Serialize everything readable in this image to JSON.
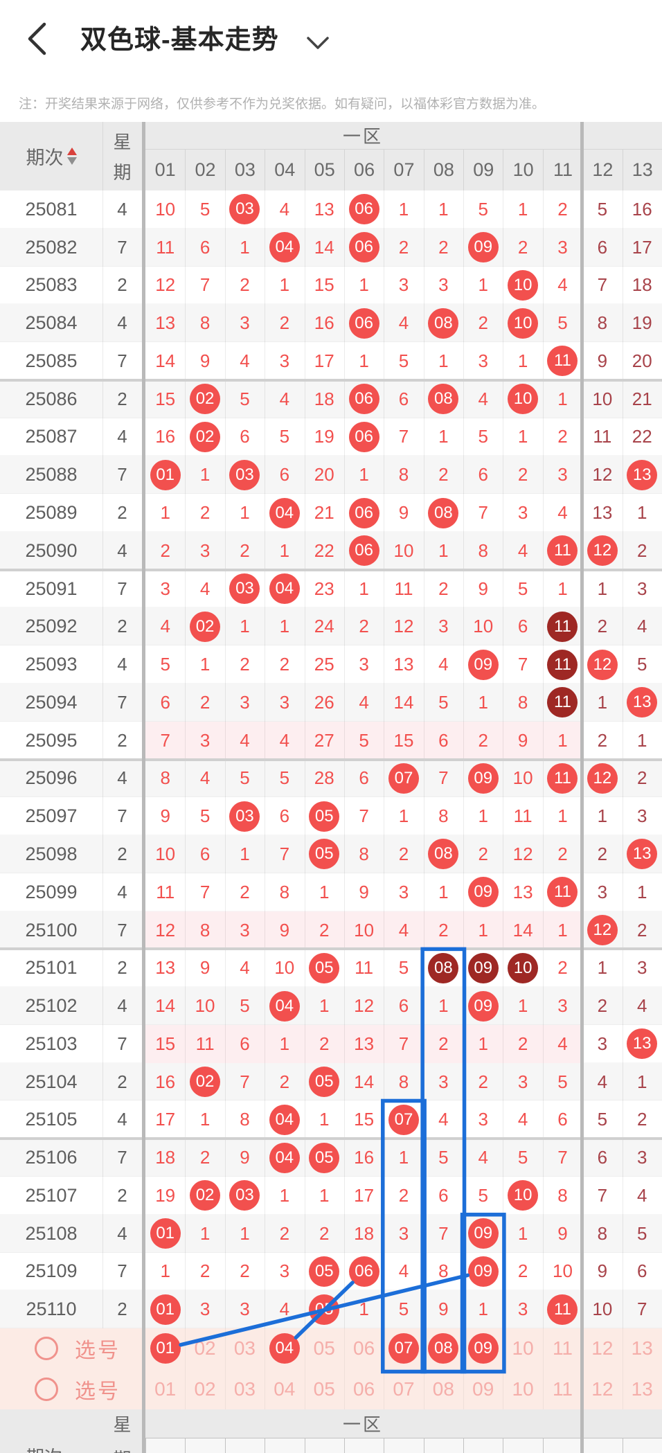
{
  "header": {
    "title": "双色球-基本走势",
    "back_icon": "chevron-left",
    "dropdown_icon": "chevron-down"
  },
  "note": "注：开奖结果来源于网络，仅供参考不作为兑奖依据。如有疑问，以福体彩官方数据为准。",
  "table": {
    "period_label": "期次",
    "week_label_chars": [
      "星",
      "期"
    ],
    "zone1_label": "一区",
    "col_headers": [
      "01",
      "02",
      "03",
      "04",
      "05",
      "06",
      "07",
      "08",
      "09",
      "10",
      "11",
      "12",
      "13"
    ],
    "zone1_col_count": 11,
    "cell_legend": {
      "*": "red-ball-drawn",
      "#": "dark-ball-drawn",
      "plain": "miss-count"
    },
    "rows": [
      {
        "period": "25081",
        "week": "4",
        "pink": false,
        "cells": [
          "10",
          "5",
          "*03",
          "4",
          "13",
          "*06",
          "1",
          "1",
          "5",
          "1",
          "2",
          "5",
          "16"
        ]
      },
      {
        "period": "25082",
        "week": "7",
        "pink": false,
        "cells": [
          "11",
          "6",
          "1",
          "*04",
          "14",
          "*06",
          "2",
          "2",
          "*09",
          "2",
          "3",
          "6",
          "17"
        ]
      },
      {
        "period": "25083",
        "week": "2",
        "pink": false,
        "cells": [
          "12",
          "7",
          "2",
          "1",
          "15",
          "1",
          "3",
          "3",
          "1",
          "*10",
          "4",
          "7",
          "18"
        ]
      },
      {
        "period": "25084",
        "week": "4",
        "pink": false,
        "cells": [
          "13",
          "8",
          "3",
          "2",
          "16",
          "*06",
          "4",
          "*08",
          "2",
          "*10",
          "5",
          "8",
          "19"
        ]
      },
      {
        "period": "25085",
        "week": "7",
        "pink": false,
        "cells": [
          "14",
          "9",
          "4",
          "3",
          "17",
          "1",
          "5",
          "1",
          "3",
          "1",
          "*11",
          "9",
          "20"
        ]
      },
      {
        "period": "25086",
        "week": "2",
        "pink": false,
        "cells": [
          "15",
          "*02",
          "5",
          "4",
          "18",
          "*06",
          "6",
          "*08",
          "4",
          "*10",
          "1",
          "10",
          "21"
        ]
      },
      {
        "period": "25087",
        "week": "4",
        "pink": false,
        "cells": [
          "16",
          "*02",
          "6",
          "5",
          "19",
          "*06",
          "7",
          "1",
          "5",
          "1",
          "2",
          "11",
          "22"
        ]
      },
      {
        "period": "25088",
        "week": "7",
        "pink": false,
        "cells": [
          "*01",
          "1",
          "*03",
          "6",
          "20",
          "1",
          "8",
          "2",
          "6",
          "2",
          "3",
          "12",
          "*13"
        ]
      },
      {
        "period": "25089",
        "week": "2",
        "pink": false,
        "cells": [
          "1",
          "2",
          "1",
          "*04",
          "21",
          "*06",
          "9",
          "*08",
          "7",
          "3",
          "4",
          "13",
          "1"
        ]
      },
      {
        "period": "25090",
        "week": "4",
        "pink": false,
        "cells": [
          "2",
          "3",
          "2",
          "1",
          "22",
          "*06",
          "10",
          "1",
          "8",
          "4",
          "*11",
          "*12",
          "2"
        ]
      },
      {
        "period": "25091",
        "week": "7",
        "pink": false,
        "cells": [
          "3",
          "4",
          "*03",
          "*04",
          "23",
          "1",
          "11",
          "2",
          "9",
          "5",
          "1",
          "1",
          "3"
        ]
      },
      {
        "period": "25092",
        "week": "2",
        "pink": false,
        "cells": [
          "4",
          "*02",
          "1",
          "1",
          "24",
          "2",
          "12",
          "3",
          "10",
          "6",
          "#11",
          "2",
          "4"
        ]
      },
      {
        "period": "25093",
        "week": "4",
        "pink": false,
        "cells": [
          "5",
          "1",
          "2",
          "2",
          "25",
          "3",
          "13",
          "4",
          "*09",
          "7",
          "#11",
          "*12",
          "5"
        ]
      },
      {
        "period": "25094",
        "week": "7",
        "pink": false,
        "cells": [
          "6",
          "2",
          "3",
          "3",
          "26",
          "4",
          "14",
          "5",
          "1",
          "8",
          "#11",
          "1",
          "*13"
        ]
      },
      {
        "period": "25095",
        "week": "2",
        "pink": true,
        "cells": [
          "7",
          "3",
          "4",
          "4",
          "27",
          "5",
          "15",
          "6",
          "2",
          "9",
          "1",
          "2",
          "1"
        ]
      },
      {
        "period": "25096",
        "week": "4",
        "pink": false,
        "cells": [
          "8",
          "4",
          "5",
          "5",
          "28",
          "6",
          "*07",
          "7",
          "*09",
          "10",
          "*11",
          "*12",
          "2"
        ]
      },
      {
        "period": "25097",
        "week": "7",
        "pink": false,
        "cells": [
          "9",
          "5",
          "*03",
          "6",
          "*05",
          "7",
          "1",
          "8",
          "1",
          "11",
          "1",
          "1",
          "3"
        ]
      },
      {
        "period": "25098",
        "week": "2",
        "pink": false,
        "cells": [
          "10",
          "6",
          "1",
          "7",
          "*05",
          "8",
          "2",
          "*08",
          "2",
          "12",
          "2",
          "2",
          "*13"
        ]
      },
      {
        "period": "25099",
        "week": "4",
        "pink": false,
        "cells": [
          "11",
          "7",
          "2",
          "8",
          "1",
          "9",
          "3",
          "1",
          "*09",
          "13",
          "*11",
          "3",
          "1"
        ]
      },
      {
        "period": "25100",
        "week": "7",
        "pink": true,
        "cells": [
          "12",
          "8",
          "3",
          "9",
          "2",
          "10",
          "4",
          "2",
          "1",
          "14",
          "1",
          "*12",
          "2"
        ]
      },
      {
        "period": "25101",
        "week": "2",
        "pink": false,
        "cells": [
          "13",
          "9",
          "4",
          "10",
          "*05",
          "11",
          "5",
          "#08",
          "#09",
          "#10",
          "2",
          "1",
          "3"
        ]
      },
      {
        "period": "25102",
        "week": "4",
        "pink": false,
        "cells": [
          "14",
          "10",
          "5",
          "*04",
          "1",
          "12",
          "6",
          "1",
          "*09",
          "1",
          "3",
          "2",
          "4"
        ]
      },
      {
        "period": "25103",
        "week": "7",
        "pink": true,
        "cells": [
          "15",
          "11",
          "6",
          "1",
          "2",
          "13",
          "7",
          "2",
          "1",
          "2",
          "4",
          "3",
          "*13"
        ]
      },
      {
        "period": "25104",
        "week": "2",
        "pink": false,
        "cells": [
          "16",
          "*02",
          "7",
          "2",
          "*05",
          "14",
          "8",
          "3",
          "2",
          "3",
          "5",
          "4",
          "1"
        ]
      },
      {
        "period": "25105",
        "week": "4",
        "pink": false,
        "cells": [
          "17",
          "1",
          "8",
          "*04",
          "1",
          "15",
          "*07",
          "4",
          "3",
          "4",
          "6",
          "5",
          "2"
        ]
      },
      {
        "period": "25106",
        "week": "7",
        "pink": false,
        "cells": [
          "18",
          "2",
          "9",
          "*04",
          "*05",
          "16",
          "1",
          "5",
          "4",
          "5",
          "7",
          "6",
          "3"
        ]
      },
      {
        "period": "25107",
        "week": "2",
        "pink": false,
        "cells": [
          "19",
          "*02",
          "*03",
          "1",
          "1",
          "17",
          "2",
          "6",
          "5",
          "*10",
          "8",
          "7",
          "4"
        ]
      },
      {
        "period": "25108",
        "week": "4",
        "pink": false,
        "cells": [
          "*01",
          "1",
          "1",
          "2",
          "2",
          "18",
          "3",
          "7",
          "*09",
          "1",
          "9",
          "8",
          "5"
        ]
      },
      {
        "period": "25109",
        "week": "7",
        "pink": false,
        "cells": [
          "1",
          "2",
          "2",
          "3",
          "*05",
          "*06",
          "4",
          "8",
          "*09",
          "2",
          "10",
          "9",
          "6"
        ]
      },
      {
        "period": "25110",
        "week": "2",
        "pink": false,
        "cells": [
          "*01",
          "3",
          "3",
          "4",
          "*05",
          "1",
          "5",
          "9",
          "1",
          "3",
          "*11",
          "10",
          "7"
        ]
      }
    ]
  },
  "selection": {
    "rows": [
      {
        "label": "选号",
        "numbers": [
          "01",
          "02",
          "03",
          "04",
          "05",
          "06",
          "07",
          "08",
          "09",
          "10",
          "11",
          "12",
          "13"
        ],
        "selected": [
          "01",
          "04",
          "07",
          "08",
          "09"
        ]
      },
      {
        "label": "选号",
        "numbers": [
          "01",
          "02",
          "03",
          "04",
          "05",
          "06",
          "07",
          "08",
          "09",
          "10",
          "11",
          "12",
          "13"
        ],
        "selected": []
      }
    ]
  },
  "footer_header": {
    "period_label": "期次",
    "week_label_chars": [
      "星",
      "期"
    ],
    "zone1_label": "一区"
  },
  "annotations": {
    "highlight_boxes": [
      {
        "column": "08",
        "from_period": "25101"
      },
      {
        "column": "07",
        "from_period": "25105"
      },
      {
        "column": "09",
        "from_period": "25108"
      }
    ],
    "trend_lines": [
      {
        "from_selection_number": "01",
        "to_period": "25109",
        "to_number": "09"
      },
      {
        "from_selection_number": "04",
        "to_period": "25109",
        "to_number": "06"
      }
    ]
  },
  "colors": {
    "ball_red": "#f2504e",
    "ball_dark": "#9e2824",
    "zone1_text": "#f2504e",
    "zone2_text": "#a8434a",
    "row_alt": "#f6f6f6",
    "row_pink": "#fdeef0",
    "selection_bg": "#fcebe5",
    "selection_number": "#f5aeaa",
    "selection_label": "#f0928c",
    "annotation_blue": "#1c6ed8",
    "header_bg": "#eaeaea",
    "header_text": "#666666",
    "period_text": "#5e5e5e",
    "sort_up": "#d9413c",
    "sort_down": "#8f8f8f"
  }
}
